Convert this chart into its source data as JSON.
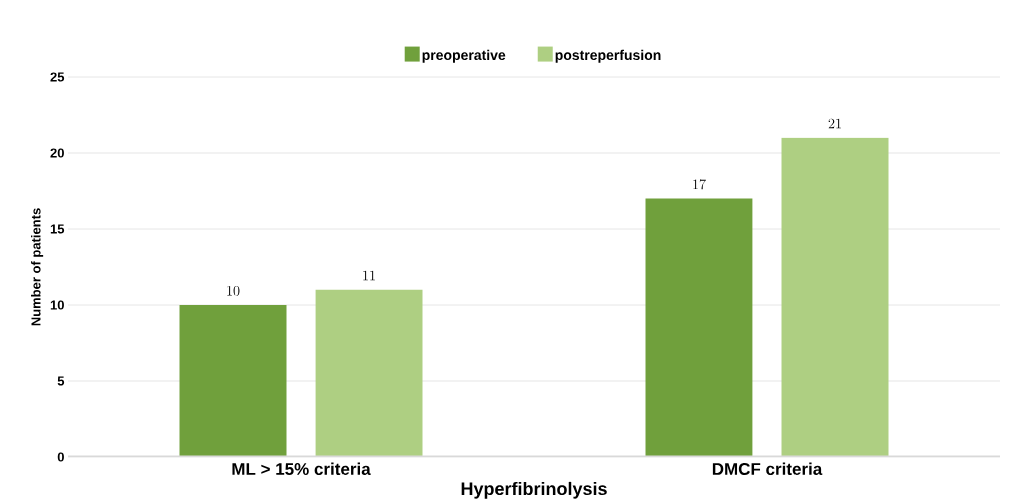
{
  "chart_data": {
    "type": "bar",
    "xlabel": "Hyperfibrinolysis",
    "ylabel": "Number of patients",
    "categories": [
      "ML > 15% criteria",
      "DMCF criteria"
    ],
    "series": [
      {
        "name": "preoperative",
        "color": "#70a03c",
        "values": [
          10,
          17
        ]
      },
      {
        "name": "postreperfusion",
        "color": "#aecf82",
        "values": [
          11,
          21
        ]
      }
    ],
    "ylim": [
      0,
      25
    ],
    "yticks": [
      0,
      5,
      10,
      15,
      20,
      25
    ],
    "grid": "y",
    "legend": "top",
    "data_labels": true
  }
}
